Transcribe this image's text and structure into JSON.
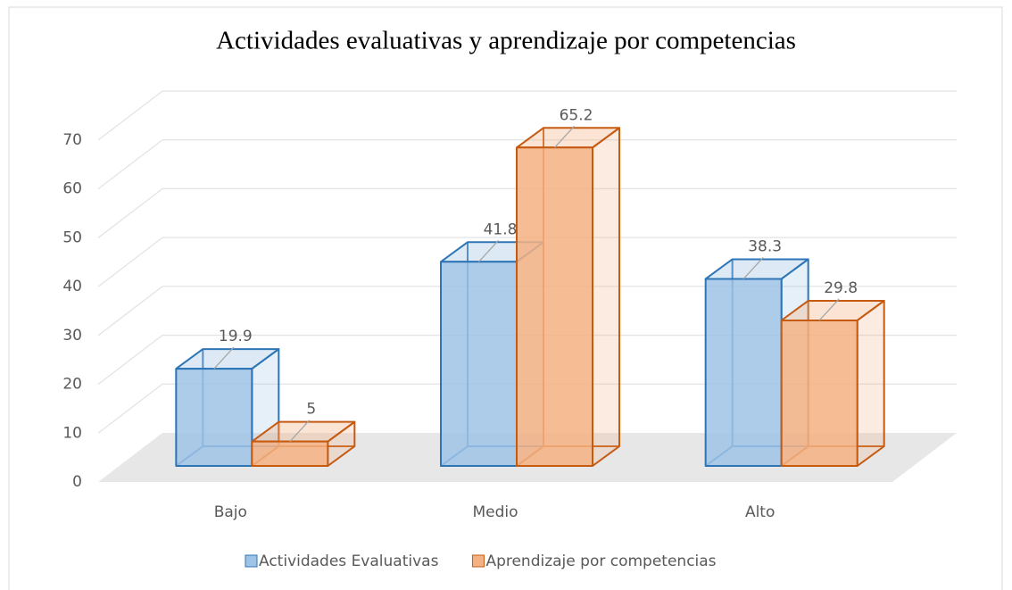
{
  "chart_data": {
    "type": "bar3d",
    "title": "Actividades evaluativas y aprendizaje por competencias",
    "categories": [
      "Bajo",
      "Medio",
      "Alto"
    ],
    "series": [
      {
        "name": "Actividades Evaluativas",
        "color": "#9dc3e6",
        "edge": "#2e75b6",
        "values": [
          19.9,
          41.8,
          38.3
        ]
      },
      {
        "name": "Aprendizaje por competencias",
        "color": "#f4b183",
        "edge": "#c55a11",
        "values": [
          5,
          65.2,
          29.8
        ]
      }
    ],
    "ylim": [
      0,
      70
    ],
    "yticks": [
      0,
      10,
      20,
      30,
      40,
      50,
      60,
      70
    ],
    "grid": true,
    "legend": "bottom"
  }
}
